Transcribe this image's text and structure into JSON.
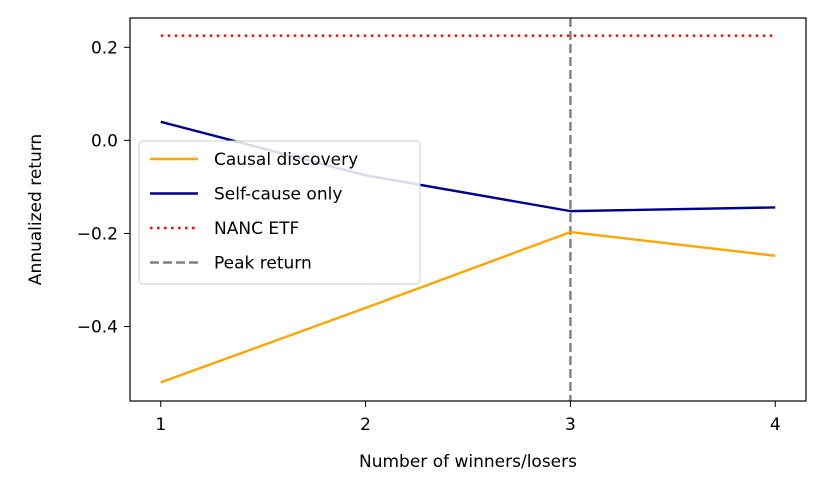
{
  "chart_data": {
    "type": "line",
    "title": "",
    "xlabel": "Number of winners/losers",
    "ylabel": "Annualized return",
    "x": [
      1,
      2,
      3,
      4
    ],
    "x_tick_labels": [
      "1",
      "2",
      "3",
      "4"
    ],
    "y_ticks": [
      0.2,
      0.0,
      -0.2,
      -0.4
    ],
    "y_tick_labels": [
      "0.2",
      "0.0",
      "−0.2",
      "−0.4"
    ],
    "xlim": [
      0.85,
      4.15
    ],
    "ylim": [
      -0.56,
      0.263
    ],
    "grid": false,
    "legend_position": "center-left",
    "series": [
      {
        "name": "Causal discovery",
        "values": [
          -0.52,
          -0.36,
          -0.197,
          -0.248
        ],
        "color": "#ffa500",
        "style": "solid"
      },
      {
        "name": "Self-cause only",
        "values": [
          0.04,
          -0.075,
          -0.152,
          -0.144
        ],
        "color": "#00008b",
        "style": "solid"
      },
      {
        "name": "NANC ETF",
        "values": [
          0.225,
          0.225,
          0.225,
          0.225
        ],
        "color": "#ff0000",
        "style": "dotted"
      }
    ],
    "reference_lines": [
      {
        "name": "Peak return",
        "x": 3,
        "color": "#808080",
        "style": "dashed"
      }
    ]
  }
}
